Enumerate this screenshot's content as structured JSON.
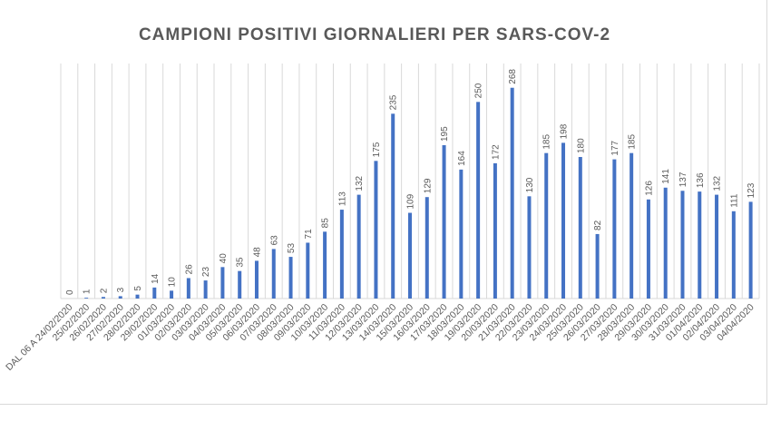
{
  "chart_data": {
    "type": "bar",
    "title": "CAMPIONI POSITIVI GIORNALIERI PER SARS-COV-2",
    "xlabel": "",
    "ylabel": "",
    "ylim": [
      0,
      300
    ],
    "grid": "vertical",
    "bar_color": "#4472c4",
    "categories": [
      "DAL 06 A 24/02/2020",
      "25/02/2020",
      "26/02/2020",
      "27/02/2020",
      "28/02/2020",
      "29/02/2020",
      "01/03/2020",
      "02/03/2020",
      "03/03/2020",
      "04/03/2020",
      "05/03/2020",
      "06/03/2020",
      "07/03/2020",
      "08/03/2020",
      "09/03/2020",
      "10/03/2020",
      "11/03/2020",
      "12/03/2020",
      "13/03/2020",
      "14/03/2020",
      "15/03/2020",
      "16/03/2020",
      "17/03/2020",
      "18/03/2020",
      "19/03/2020",
      "20/03/2020",
      "21/03/2020",
      "22/03/2020",
      "23/03/2020",
      "24/03/2020",
      "25/03/2020",
      "26/03/2020",
      "27/03/2020",
      "28/03/2020",
      "29/03/2020",
      "30/03/2020",
      "31/03/2020",
      "01/04/2020",
      "02/04/2020",
      "03/04/2020",
      "04/04/2020"
    ],
    "values": [
      0,
      1,
      2,
      3,
      5,
      14,
      10,
      26,
      23,
      40,
      35,
      48,
      63,
      53,
      71,
      85,
      113,
      132,
      175,
      235,
      109,
      129,
      195,
      164,
      250,
      172,
      268,
      130,
      185,
      198,
      180,
      82,
      177,
      185,
      126,
      141,
      137,
      136,
      132,
      111,
      123
    ]
  }
}
